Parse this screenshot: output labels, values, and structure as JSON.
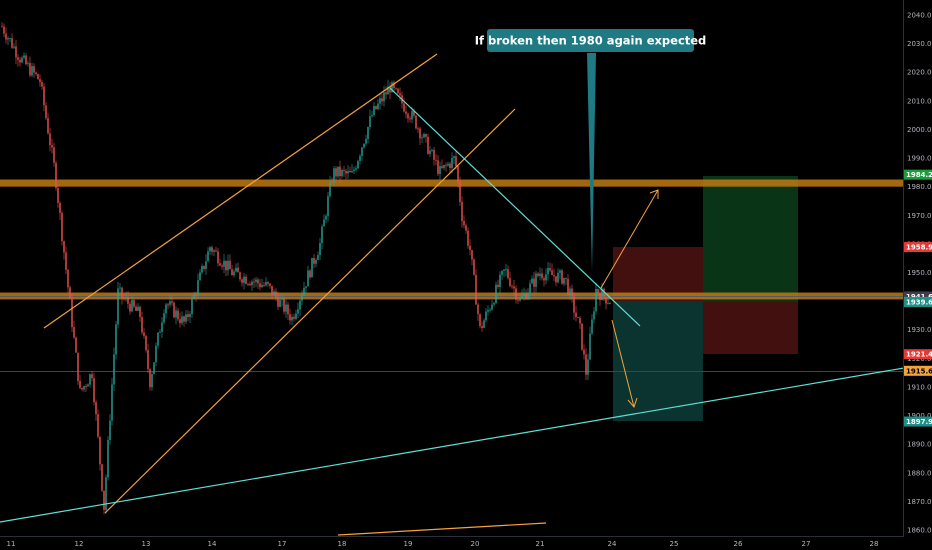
{
  "chart_data": {
    "type": "candlestick",
    "colors": {
      "background": "#000000",
      "up_candle": "#26a69a",
      "down_candle": "#ef5350",
      "orange_line": "#f7a23a",
      "zone_band": "#c07a12",
      "cyan_line": "#5ee0d6",
      "annotation": "#1f7a84",
      "profit_zone": "#0b3d1a",
      "loss_zone": "#4a1212",
      "short_profit_zone": "#0c3a36"
    },
    "ylim": [
      1860,
      2044
    ],
    "y_ticks": [
      "2040.00",
      "2030.00",
      "2020.00",
      "2010.00",
      "2000.00",
      "1990.00",
      "1980.00",
      "1970.00",
      "1960.00",
      "1950.00",
      "1940.00",
      "1930.00",
      "1920.00",
      "1910.00",
      "1900.00",
      "1890.00",
      "1880.00",
      "1870.00",
      "1860.00"
    ],
    "x_ticks": [
      "11",
      "12",
      "13",
      "14",
      "17",
      "18",
      "19",
      "20",
      "21",
      "24",
      "25",
      "26",
      "27",
      "28"
    ],
    "price_badges": [
      {
        "label": "1984.20",
        "value": 1984.2,
        "color": "#1b9e3a",
        "text_color": "#ffffff"
      },
      {
        "label": "1958.90",
        "value": 1958.9,
        "color": "#e53935",
        "text_color": "#ffffff"
      },
      {
        "label": "1941.64",
        "value": 1941.64,
        "color": "#3a3f4a",
        "text_color": "#ffffff"
      },
      {
        "label": "1939.70",
        "value": 1939.7,
        "color": "#c9ccd2",
        "text_color": "#000000"
      },
      {
        "label": "1939.65",
        "value": 1939.65,
        "color": "#1e8f87",
        "text_color": "#ffffff"
      },
      {
        "label": "1921.45",
        "value": 1921.45,
        "color": "#e53935",
        "text_color": "#ffffff"
      },
      {
        "label": "1915.64",
        "value": 1915.64,
        "color": "#f7a23a",
        "text_color": "#000000"
      },
      {
        "label": "1897.91",
        "value": 1897.91,
        "color": "#1e8f87",
        "text_color": "#ffffff"
      }
    ],
    "zones": [
      {
        "name": "resistance-zone",
        "y_top": 1982.5,
        "y_bottom": 1980.0
      },
      {
        "name": "support-zone",
        "y_top": 1943.0,
        "y_bottom": 1940.6
      }
    ],
    "price_lines": [
      {
        "name": "last-price-line",
        "value": 1941.64,
        "color": "#555a63"
      },
      {
        "name": "low-price-line",
        "value": 1915.64,
        "color": "#6b3a10"
      }
    ],
    "annotation": {
      "text": "If broken then 1980 again expected"
    }
  }
}
